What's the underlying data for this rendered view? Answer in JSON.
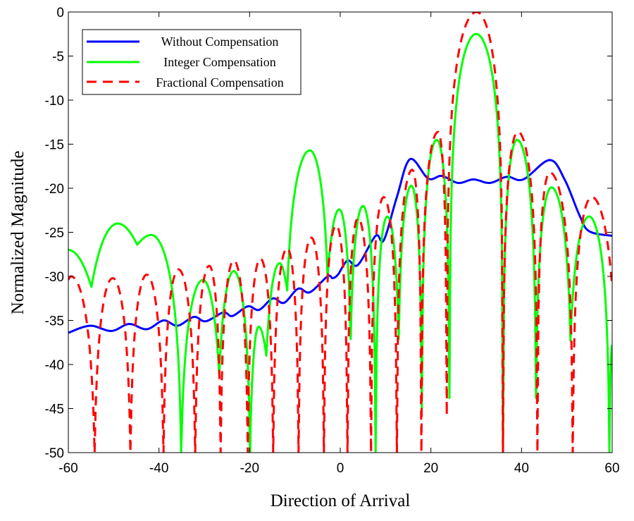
{
  "chart_data": {
    "type": "line",
    "title": "",
    "xlabel": "Direction of Arrival",
    "ylabel": "Normalized Magnitude",
    "xlim": [
      -60,
      60
    ],
    "ylim": [
      -50,
      0
    ],
    "xticks": [
      -60,
      -40,
      -20,
      0,
      20,
      40,
      60
    ],
    "yticks": [
      0,
      -5,
      -10,
      -15,
      -20,
      -25,
      -30,
      -35,
      -40,
      -45,
      -50
    ],
    "grid": false,
    "legend_position": "top-left",
    "series": [
      {
        "name": "Without Compensation",
        "color": "#0000ff",
        "style": "solid",
        "points": [
          [
            -60,
            -36.4
          ],
          [
            -55.2,
            -35.6
          ],
          [
            -50.5,
            -36.2
          ],
          [
            -46.6,
            -35.4
          ],
          [
            -42.7,
            -36.0
          ],
          [
            -39.0,
            -35.0
          ],
          [
            -35.9,
            -35.6
          ],
          [
            -32.3,
            -34.6
          ],
          [
            -29.7,
            -35.1
          ],
          [
            -25.8,
            -34.1
          ],
          [
            -23.8,
            -34.5
          ],
          [
            -20.4,
            -33.4
          ],
          [
            -17.9,
            -33.8
          ],
          [
            -14.9,
            -32.5
          ],
          [
            -12.4,
            -33.0
          ],
          [
            -9.3,
            -31.4
          ],
          [
            -6.7,
            -31.8
          ],
          [
            -2.8,
            -30.0
          ],
          [
            -1.7,
            -30.2
          ],
          [
            -0.5,
            -29.8
          ],
          [
            1.6,
            -28.2
          ],
          [
            3.9,
            -28.7
          ],
          [
            7.8,
            -25.4
          ],
          [
            9.6,
            -25.9
          ],
          [
            12.5,
            -21.0
          ],
          [
            15.4,
            -16.7
          ],
          [
            19.4,
            -18.9
          ],
          [
            22.4,
            -18.6
          ],
          [
            26.0,
            -19.4
          ],
          [
            29.4,
            -19.0
          ],
          [
            33.0,
            -19.4
          ],
          [
            36.8,
            -18.7
          ],
          [
            40.4,
            -19.0
          ],
          [
            46.2,
            -16.8
          ],
          [
            49.5,
            -19.0
          ],
          [
            52.9,
            -23.2
          ],
          [
            55.0,
            -24.9
          ],
          [
            60,
            -25.4
          ]
        ]
      },
      {
        "name": "Integer Compensation",
        "color": "#00ff00",
        "style": "solid",
        "points": [
          [
            -60,
            -27.0
          ],
          [
            -54.9,
            -31.2
          ],
          [
            -49.1,
            -24.0
          ],
          [
            -44.8,
            -26.4
          ],
          [
            -41.7,
            -25.3
          ],
          [
            -35.1,
            -50
          ],
          [
            -30.3,
            -30.4
          ],
          [
            -26.7,
            -41.2
          ],
          [
            -23.5,
            -29.4
          ],
          [
            -19.9,
            -50
          ],
          [
            -18.0,
            -35.7
          ],
          [
            -16.3,
            -39.0
          ],
          [
            -13.4,
            -28.5
          ],
          [
            -11.7,
            -31.6
          ],
          [
            -6.7,
            -15.7
          ],
          [
            -2.8,
            -30.0
          ],
          [
            -0.2,
            -22.4
          ],
          [
            2.3,
            -37.1
          ],
          [
            5.0,
            -22.0
          ],
          [
            7.8,
            -50
          ],
          [
            10.4,
            -23.2
          ],
          [
            12.9,
            -37.1
          ],
          [
            15.7,
            -19.7
          ],
          [
            18.0,
            -45.0
          ],
          [
            21.3,
            -14.5
          ],
          [
            24.1,
            -43.8
          ],
          [
            30.0,
            -2.5
          ],
          [
            35.9,
            -50
          ],
          [
            39.0,
            -14.5
          ],
          [
            43.2,
            -43.8
          ],
          [
            46.6,
            -19.9
          ],
          [
            50.8,
            -37.3
          ],
          [
            54.9,
            -23.2
          ],
          [
            59.4,
            -50
          ],
          [
            60,
            -37.8
          ]
        ]
      },
      {
        "name": "Fractional Compensation",
        "color": "#ff0000",
        "style": "dashed",
        "points": [
          [
            -60,
            -30.4
          ],
          [
            -59.4,
            -30.0
          ],
          [
            -54.2,
            -50
          ],
          [
            -50.2,
            -30.2
          ],
          [
            -46.3,
            -50
          ],
          [
            -42.7,
            -29.8
          ],
          [
            -39.0,
            -50
          ],
          [
            -35.7,
            -29.2
          ],
          [
            -32.0,
            -50
          ],
          [
            -28.9,
            -28.8
          ],
          [
            -26.4,
            -50
          ],
          [
            -23.5,
            -28.2
          ],
          [
            -20.4,
            -50
          ],
          [
            -17.6,
            -28.0
          ],
          [
            -14.8,
            -50
          ],
          [
            -11.7,
            -26.8
          ],
          [
            -9.2,
            -50
          ],
          [
            -6.4,
            -25.6
          ],
          [
            -3.6,
            -50
          ],
          [
            -0.9,
            -24.2
          ],
          [
            1.6,
            -50
          ],
          [
            3.9,
            -23.4
          ],
          [
            6.8,
            -50
          ],
          [
            9.6,
            -21.0
          ],
          [
            12.5,
            -50
          ],
          [
            15.9,
            -17.9
          ],
          [
            17.9,
            -50
          ],
          [
            21.6,
            -13.6
          ],
          [
            23.5,
            -45.8
          ],
          [
            30.1,
            0
          ],
          [
            35.9,
            -50
          ],
          [
            39.2,
            -13.6
          ],
          [
            43.5,
            -50
          ],
          [
            46.2,
            -18.2
          ],
          [
            51.3,
            -50
          ],
          [
            55.5,
            -21.0
          ],
          [
            60,
            -31.2
          ]
        ]
      }
    ]
  }
}
